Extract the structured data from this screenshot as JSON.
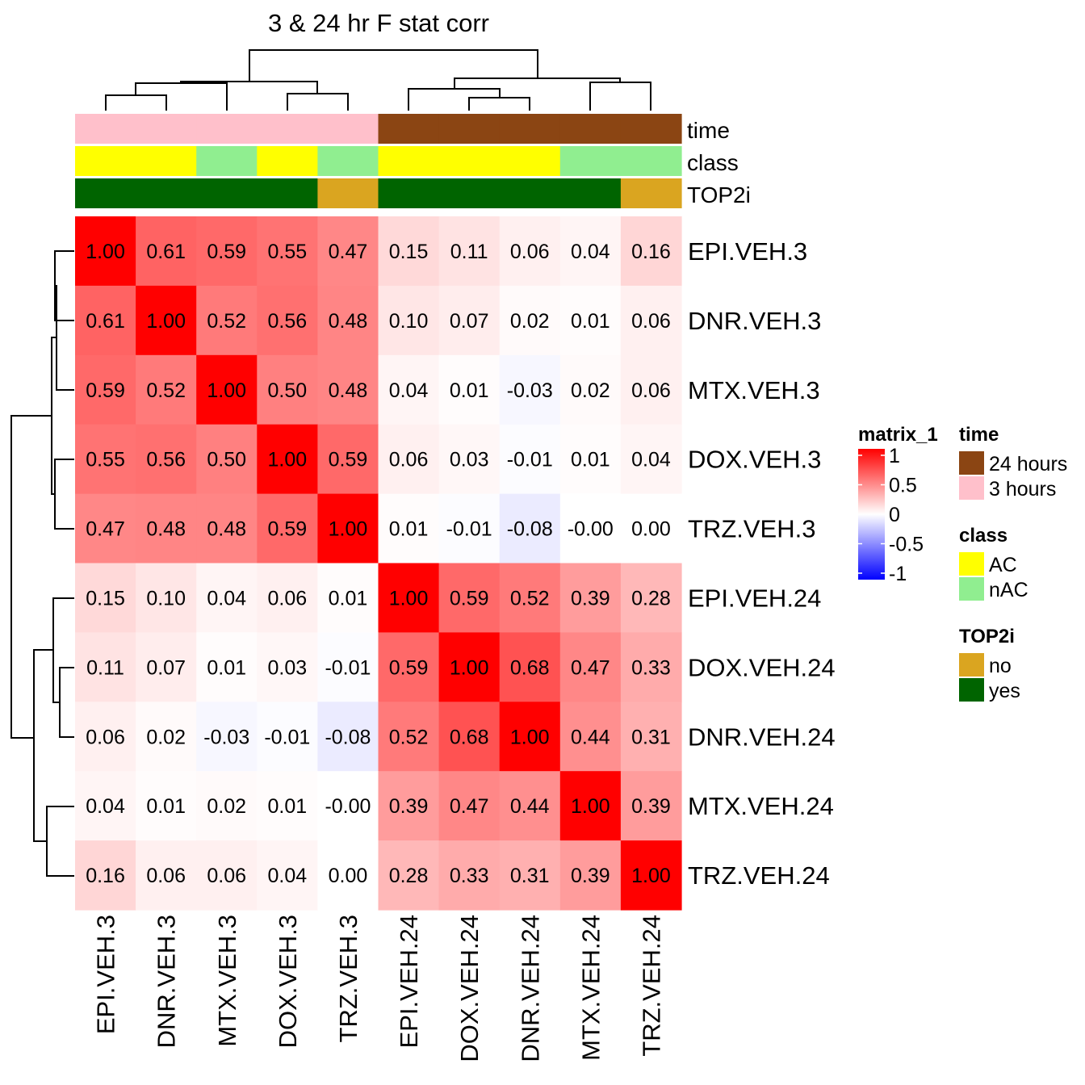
{
  "chart_data": {
    "type": "heatmap",
    "title": "3 & 24 hr F stat corr",
    "rows": [
      "EPI.VEH.3",
      "DNR.VEH.3",
      "MTX.VEH.3",
      "DOX.VEH.3",
      "TRZ.VEH.3",
      "EPI.VEH.24",
      "DOX.VEH.24",
      "DNR.VEH.24",
      "MTX.VEH.24",
      "TRZ.VEH.24"
    ],
    "columns": [
      "EPI.VEH.3",
      "DNR.VEH.3",
      "MTX.VEH.3",
      "DOX.VEH.3",
      "TRZ.VEH.3",
      "EPI.VEH.24",
      "DOX.VEH.24",
      "DNR.VEH.24",
      "MTX.VEH.24",
      "TRZ.VEH.24"
    ],
    "values": [
      [
        1.0,
        0.61,
        0.59,
        0.55,
        0.47,
        0.15,
        0.11,
        0.06,
        0.04,
        0.16
      ],
      [
        0.61,
        1.0,
        0.52,
        0.56,
        0.48,
        0.1,
        0.07,
        0.02,
        0.01,
        0.06
      ],
      [
        0.59,
        0.52,
        1.0,
        0.5,
        0.48,
        0.04,
        0.01,
        -0.03,
        0.02,
        0.06
      ],
      [
        0.55,
        0.56,
        0.5,
        1.0,
        0.59,
        0.06,
        0.03,
        -0.01,
        0.01,
        0.04
      ],
      [
        0.47,
        0.48,
        0.48,
        0.59,
        1.0,
        0.01,
        -0.01,
        -0.08,
        0.0,
        0.0
      ],
      [
        0.15,
        0.1,
        0.04,
        0.06,
        0.01,
        1.0,
        0.59,
        0.52,
        0.39,
        0.28
      ],
      [
        0.11,
        0.07,
        0.01,
        0.03,
        -0.01,
        0.59,
        1.0,
        0.68,
        0.47,
        0.33
      ],
      [
        0.06,
        0.02,
        -0.03,
        -0.01,
        -0.08,
        0.52,
        0.68,
        1.0,
        0.44,
        0.31
      ],
      [
        0.04,
        0.01,
        0.02,
        0.01,
        0.0,
        0.39,
        0.47,
        0.44,
        1.0,
        0.39
      ],
      [
        0.16,
        0.06,
        0.06,
        0.04,
        0.0,
        0.28,
        0.33,
        0.31,
        0.39,
        1.0
      ]
    ],
    "cell_labels": [
      [
        "1.00",
        "0.61",
        "0.59",
        "0.55",
        "0.47",
        "0.15",
        "0.11",
        "0.06",
        "0.04",
        "0.16"
      ],
      [
        "0.61",
        "1.00",
        "0.52",
        "0.56",
        "0.48",
        "0.10",
        "0.07",
        "0.02",
        "0.01",
        "0.06"
      ],
      [
        "0.59",
        "0.52",
        "1.00",
        "0.50",
        "0.48",
        "0.04",
        "0.01",
        "-0.03",
        "0.02",
        "0.06"
      ],
      [
        "0.55",
        "0.56",
        "0.50",
        "1.00",
        "0.59",
        "0.06",
        "0.03",
        "-0.01",
        "0.01",
        "0.04"
      ],
      [
        "0.47",
        "0.48",
        "0.48",
        "0.59",
        "1.00",
        "0.01",
        "-0.01",
        "-0.08",
        "-0.00",
        "0.00"
      ],
      [
        "0.15",
        "0.10",
        "0.04",
        "0.06",
        "0.01",
        "1.00",
        "0.59",
        "0.52",
        "0.39",
        "0.28"
      ],
      [
        "0.11",
        "0.07",
        "0.01",
        "0.03",
        "-0.01",
        "0.59",
        "1.00",
        "0.68",
        "0.47",
        "0.33"
      ],
      [
        "0.06",
        "0.02",
        "-0.03",
        "-0.01",
        "-0.08",
        "0.52",
        "0.68",
        "1.00",
        "0.44",
        "0.31"
      ],
      [
        "0.04",
        "0.01",
        "0.02",
        "0.01",
        "-0.00",
        "0.39",
        "0.47",
        "0.44",
        "1.00",
        "0.39"
      ],
      [
        "0.16",
        "0.06",
        "0.06",
        "0.04",
        "0.00",
        "0.28",
        "0.33",
        "0.31",
        "0.39",
        "1.00"
      ]
    ],
    "color_scale": {
      "min": -1,
      "mid": 0,
      "max": 1,
      "low_color": "#0000FF",
      "mid_color": "#FFFFFF",
      "high_color": "#FF0000"
    },
    "annotations": [
      {
        "name": "time",
        "values": [
          "3 hours",
          "3 hours",
          "3 hours",
          "3 hours",
          "3 hours",
          "24 hours",
          "24 hours",
          "24 hours",
          "24 hours",
          "24 hours"
        ]
      },
      {
        "name": "class",
        "values": [
          "AC",
          "AC",
          "nAC",
          "AC",
          "nAC",
          "AC",
          "AC",
          "AC",
          "nAC",
          "nAC"
        ]
      },
      {
        "name": "TOP2i",
        "values": [
          "yes",
          "yes",
          "yes",
          "yes",
          "no",
          "yes",
          "yes",
          "yes",
          "yes",
          "no"
        ]
      }
    ],
    "legend": {
      "heatmap": {
        "title": "matrix_1",
        "ticks": [
          "1",
          "0.5",
          "0",
          "-0.5",
          "-1"
        ]
      },
      "time": {
        "title": "time",
        "items": [
          {
            "label": "24 hours",
            "color": "#8B4513"
          },
          {
            "label": "3 hours",
            "color": "#FFC0CB"
          }
        ]
      },
      "class": {
        "title": "class",
        "items": [
          {
            "label": "AC",
            "color": "#FFFF00"
          },
          {
            "label": "nAC",
            "color": "#90EE90"
          }
        ]
      },
      "TOP2i": {
        "title": "TOP2i",
        "items": [
          {
            "label": "no",
            "color": "#DAA520"
          },
          {
            "label": "yes",
            "color": "#006400"
          }
        ]
      }
    },
    "legend_placement": "right"
  }
}
